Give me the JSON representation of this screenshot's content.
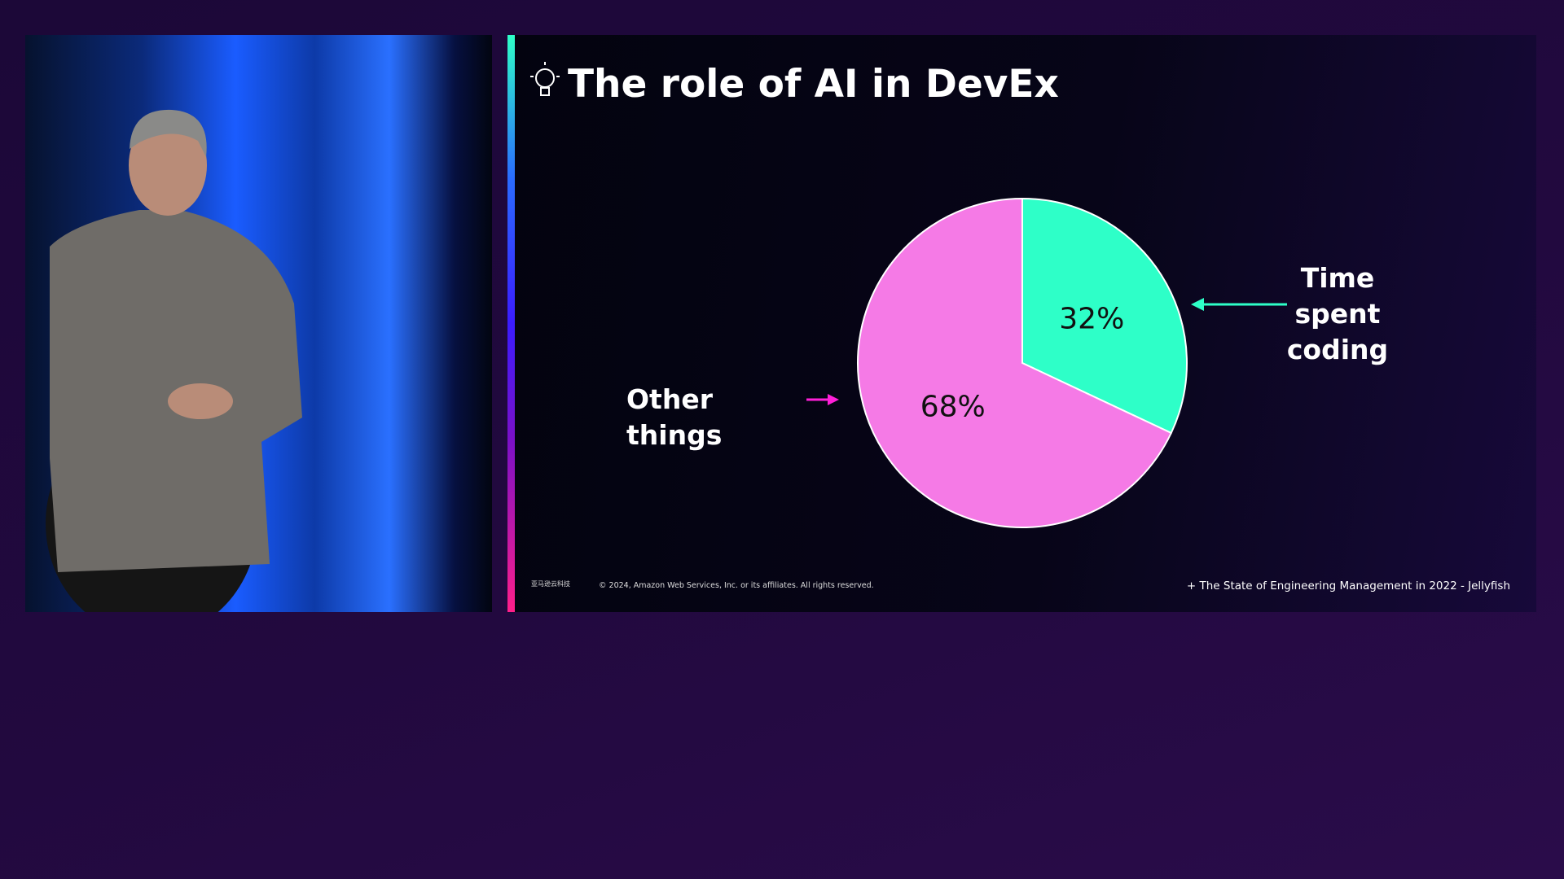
{
  "chart_data": {
    "type": "pie",
    "title": "The role of AI in DevEx",
    "categories": [
      "Time spent coding",
      "Other things"
    ],
    "values": [
      32,
      68
    ],
    "value_labels": [
      "32%",
      "68%"
    ],
    "colors": [
      "#2effc8",
      "#f57ae6"
    ]
  },
  "footer": {
    "logo": "亚马逊云科技",
    "copyright": "© 2024, Amazon Web Services, Inc. or its affiliates. All rights reserved.",
    "source": "+ The State of Engineering Management in 2022 - Jellyfish"
  }
}
